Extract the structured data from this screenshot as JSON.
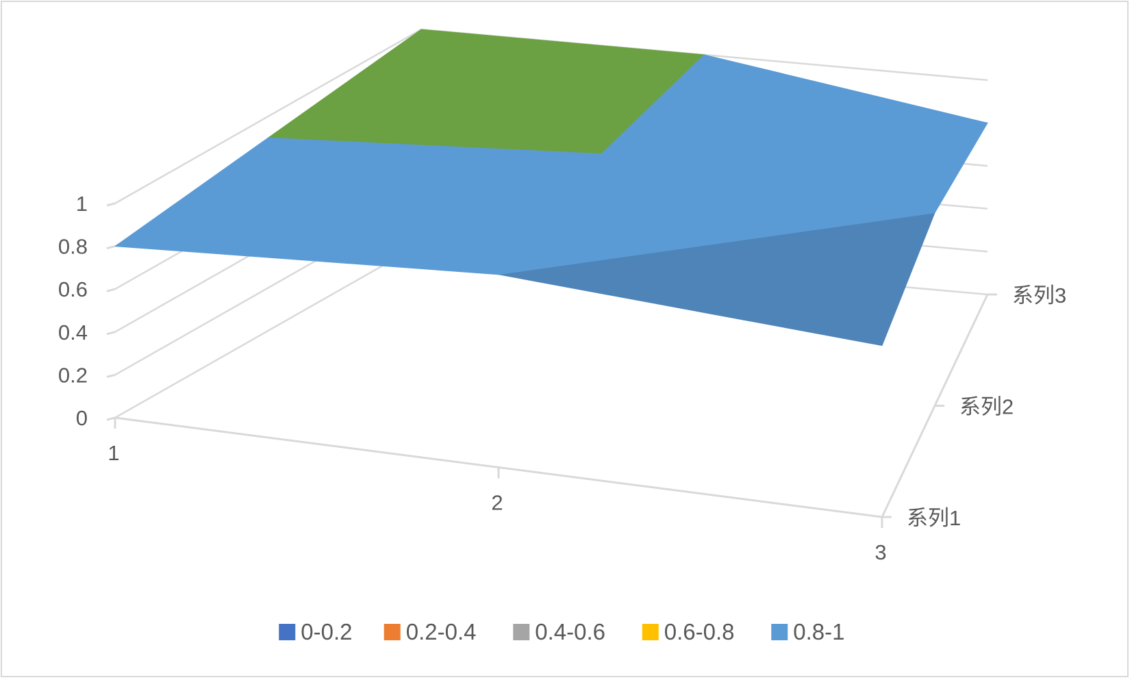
{
  "chart_data": {
    "type": "surface",
    "title": "",
    "x": [
      "1",
      "2",
      "3"
    ],
    "series": [
      {
        "name": "系列1",
        "values": [
          0.8,
          0.9,
          0.8
        ]
      },
      {
        "name": "系列2",
        "values": [
          0.9,
          1.0,
          0.9
        ]
      },
      {
        "name": "系列3",
        "values": [
          1.0,
          1.0,
          0.8
        ]
      }
    ],
    "zlim": [
      0,
      1
    ],
    "z_ticks": [
      "0",
      "0.2",
      "0.4",
      "0.6",
      "0.8",
      "1"
    ],
    "legend_position": "bottom",
    "legend": [
      {
        "label": "0-0.2",
        "color": "#4472c4"
      },
      {
        "label": "0.2-0.4",
        "color": "#ed7d31"
      },
      {
        "label": "0.4-0.6",
        "color": "#a5a5a5"
      },
      {
        "label": "0.6-0.8",
        "color": "#ffc000"
      },
      {
        "label": "0.8-1",
        "color": "#5b9bd5"
      }
    ],
    "band_colors": {
      "0.8-0.9": "#4e84b8",
      "0.9-1": "#6ba143",
      "0.8-1": "#5b9bd5",
      "0.6-0.8": "#ffc000"
    },
    "grid": true
  }
}
